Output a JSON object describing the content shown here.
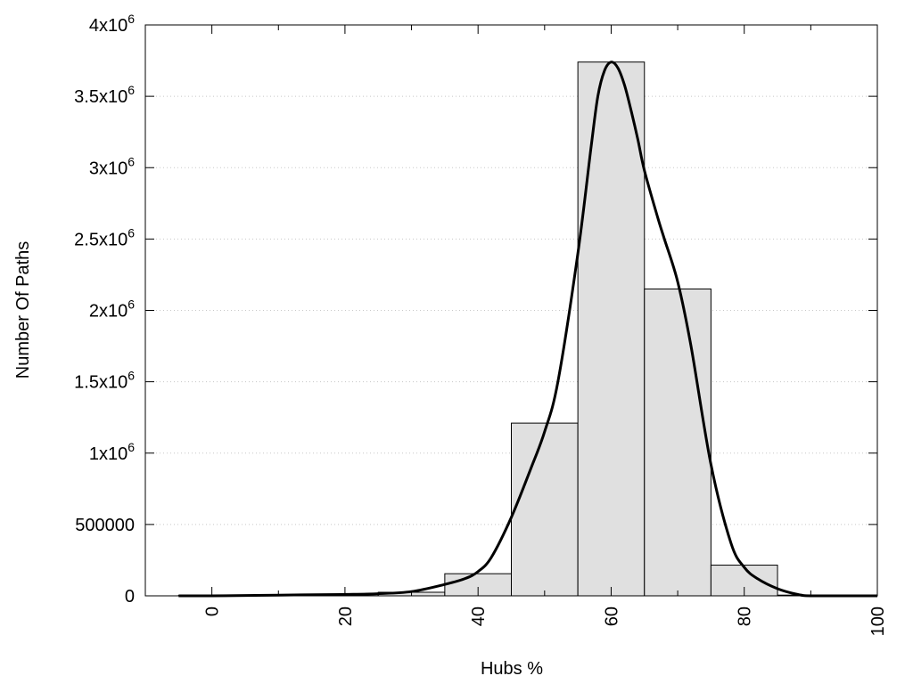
{
  "chart_data": {
    "type": "bar",
    "xlabel": "Hubs %",
    "ylabel": "Number Of Paths",
    "xlim": [
      -10,
      100
    ],
    "ylim": [
      0,
      4000000
    ],
    "grid": "horizontal-dotted",
    "x_ticks": [
      {
        "value": 0,
        "label": "0"
      },
      {
        "value": 20,
        "label": "20"
      },
      {
        "value": 40,
        "label": "40"
      },
      {
        "value": 60,
        "label": "60"
      },
      {
        "value": 80,
        "label": "80"
      },
      {
        "value": 100,
        "label": "100"
      }
    ],
    "y_ticks": [
      {
        "value": 0,
        "mantissa": "0",
        "exp": ""
      },
      {
        "value": 500000,
        "mantissa": "500000",
        "exp": ""
      },
      {
        "value": 1000000,
        "mantissa": "1x10",
        "exp": "6"
      },
      {
        "value": 1500000,
        "mantissa": "1.5x10",
        "exp": "6"
      },
      {
        "value": 2000000,
        "mantissa": "2x10",
        "exp": "6"
      },
      {
        "value": 2500000,
        "mantissa": "2.5x10",
        "exp": "6"
      },
      {
        "value": 3000000,
        "mantissa": "3x10",
        "exp": "6"
      },
      {
        "value": 3500000,
        "mantissa": "3.5x10",
        "exp": "6"
      },
      {
        "value": 4000000,
        "mantissa": "4x10",
        "exp": "6"
      }
    ],
    "bars": [
      {
        "x0": -5,
        "x1": 5,
        "value": 3000
      },
      {
        "x0": 5,
        "x1": 15,
        "value": 5000
      },
      {
        "x0": 15,
        "x1": 25,
        "value": 10000
      },
      {
        "x0": 25,
        "x1": 35,
        "value": 25000
      },
      {
        "x0": 35,
        "x1": 45,
        "value": 155000
      },
      {
        "x0": 45,
        "x1": 55,
        "value": 1210000
      },
      {
        "x0": 55,
        "x1": 65,
        "value": 3740000
      },
      {
        "x0": 65,
        "x1": 75,
        "value": 2150000
      },
      {
        "x0": 75,
        "x1": 85,
        "value": 215000
      },
      {
        "x0": 85,
        "x1": 95,
        "value": 5000
      }
    ],
    "curve": {
      "x": [
        -5,
        0,
        10,
        20,
        25,
        30,
        35,
        38,
        40,
        42,
        45,
        48,
        50,
        52,
        55,
        57,
        58,
        59,
        60,
        61,
        62,
        63,
        64,
        65,
        67,
        68,
        70,
        72,
        75,
        78,
        80,
        82,
        85,
        88,
        90,
        95,
        100
      ],
      "y": [
        0,
        0,
        5000,
        10000,
        15000,
        30000,
        80000,
        120000,
        170000,
        270000,
        550000,
        900000,
        1150000,
        1500000,
        2400000,
        3150000,
        3500000,
        3680000,
        3740000,
        3700000,
        3580000,
        3400000,
        3200000,
        2980000,
        2650000,
        2500000,
        2200000,
        1750000,
        920000,
        370000,
        200000,
        120000,
        50000,
        10000,
        0,
        0,
        0
      ]
    }
  }
}
